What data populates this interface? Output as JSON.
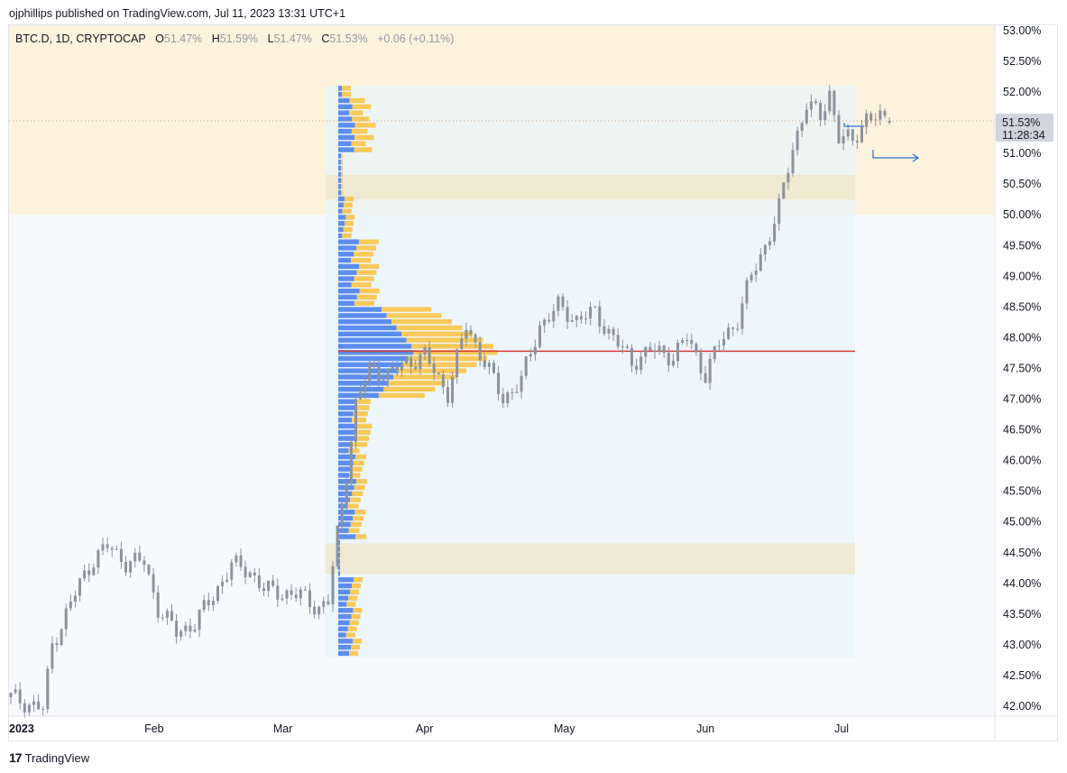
{
  "header": {
    "publisher_line": "ojphillips published on TradingView.com, Jul 11, 2023 13:31 UTC+1"
  },
  "legend": {
    "symbol": "BTC.D, 1D, CRYPTOCAP",
    "o_label": "O",
    "o_value": "51.47%",
    "h_label": "H",
    "h_value": "51.59%",
    "l_label": "L",
    "l_value": "51.47%",
    "c_label": "C",
    "c_value": "51.53%",
    "change": "+0.06 (+0.11%)"
  },
  "price_badge": {
    "price": "51.53%",
    "countdown": "11:28:34"
  },
  "footer": {
    "logo_mark": "17",
    "brand": "TradingView"
  },
  "colors": {
    "candle": "#8d929c",
    "volume_up": "#5b8def",
    "volume_down": "#f9c95a",
    "poc_line": "#d83b3b",
    "upper_zone": "#fdf2dc",
    "range_box": "#e8f4fa",
    "arrow": "#2f6ed9"
  },
  "chart_data": {
    "type": "candlestick",
    "symbol": "BTC.D",
    "ylim": [
      41.9,
      53.1
    ],
    "y_ticks": [
      "53.00%",
      "52.50%",
      "52.00%",
      "51.50%",
      "51.00%",
      "50.50%",
      "50.00%",
      "49.50%",
      "49.00%",
      "48.50%",
      "48.00%",
      "47.50%",
      "47.00%",
      "46.50%",
      "46.00%",
      "45.50%",
      "45.00%",
      "44.50%",
      "44.00%",
      "43.50%",
      "43.00%",
      "42.50%",
      "42.00%"
    ],
    "x_ticks": [
      "2023",
      "Feb",
      "Mar",
      "Apr",
      "May",
      "Jun",
      "Jul"
    ],
    "last_price": 51.53,
    "point_of_control": 47.78,
    "upper_zone": [
      50.0,
      53.1
    ],
    "volume_profile_range": [
      42.8,
      52.1
    ],
    "value_bands": [
      [
        50.25,
        50.65
      ],
      [
        44.15,
        44.65
      ]
    ],
    "candles": [
      {
        "x": "Jan 1",
        "c": 42.15
      },
      {
        "x": "Jan 8",
        "c": 41.95
      },
      {
        "x": "Jan 10",
        "c": 43.0
      },
      {
        "x": "Jan 13",
        "c": 43.5
      },
      {
        "x": "Jan 16",
        "c": 44.0
      },
      {
        "x": "Jan 19",
        "c": 44.4
      },
      {
        "x": "Jan 22",
        "c": 44.6
      },
      {
        "x": "Jan 26",
        "c": 44.35
      },
      {
        "x": "Jan 30",
        "c": 44.35
      },
      {
        "x": "Feb 2",
        "c": 43.6
      },
      {
        "x": "Feb 6",
        "c": 43.2
      },
      {
        "x": "Feb 10",
        "c": 43.35
      },
      {
        "x": "Feb 14",
        "c": 43.8
      },
      {
        "x": "Feb 18",
        "c": 44.3
      },
      {
        "x": "Feb 22",
        "c": 44.2
      },
      {
        "x": "Feb 25",
        "c": 43.9
      },
      {
        "x": "Mar 1",
        "c": 43.85
      },
      {
        "x": "Mar 5",
        "c": 43.8
      },
      {
        "x": "Mar 9",
        "c": 43.6
      },
      {
        "x": "Mar 11",
        "c": 43.7
      },
      {
        "x": "Mar 13",
        "c": 44.8
      },
      {
        "x": "Mar 15",
        "c": 45.8
      },
      {
        "x": "Mar 17",
        "c": 46.9
      },
      {
        "x": "Mar 20",
        "c": 47.5
      },
      {
        "x": "Mar 24",
        "c": 47.4
      },
      {
        "x": "Mar 28",
        "c": 47.6
      },
      {
        "x": "Apr 1",
        "c": 47.7
      },
      {
        "x": "Apr 6",
        "c": 47.1
      },
      {
        "x": "Apr 10",
        "c": 48.2
      },
      {
        "x": "Apr 14",
        "c": 47.6
      },
      {
        "x": "Apr 18",
        "c": 47.0
      },
      {
        "x": "Apr 22",
        "c": 47.3
      },
      {
        "x": "Apr 26",
        "c": 48.2
      },
      {
        "x": "Apr 30",
        "c": 48.5
      },
      {
        "x": "May 4",
        "c": 48.3
      },
      {
        "x": "May 8",
        "c": 48.4
      },
      {
        "x": "May 13",
        "c": 47.9
      },
      {
        "x": "May 16",
        "c": 47.6
      },
      {
        "x": "May 20",
        "c": 47.8
      },
      {
        "x": "May 25",
        "c": 47.7
      },
      {
        "x": "May 28",
        "c": 48.0
      },
      {
        "x": "Jun 1",
        "c": 47.4
      },
      {
        "x": "Jun 4",
        "c": 47.9
      },
      {
        "x": "Jun 8",
        "c": 48.3
      },
      {
        "x": "Jun 11",
        "c": 49.0
      },
      {
        "x": "Jun 14",
        "c": 49.5
      },
      {
        "x": "Jun 17",
        "c": 50.1
      },
      {
        "x": "Jun 20",
        "c": 51.1
      },
      {
        "x": "Jun 23",
        "c": 51.8
      },
      {
        "x": "Jun 26",
        "c": 51.6
      },
      {
        "x": "Jun 28",
        "c": 52.0
      },
      {
        "x": "Jun 30",
        "c": 51.25
      },
      {
        "x": "Jul 3",
        "c": 51.2
      },
      {
        "x": "Jul 6",
        "c": 51.6
      },
      {
        "x": "Jul 9",
        "c": 51.55
      },
      {
        "x": "Jul 11",
        "c": 51.53
      }
    ]
  }
}
